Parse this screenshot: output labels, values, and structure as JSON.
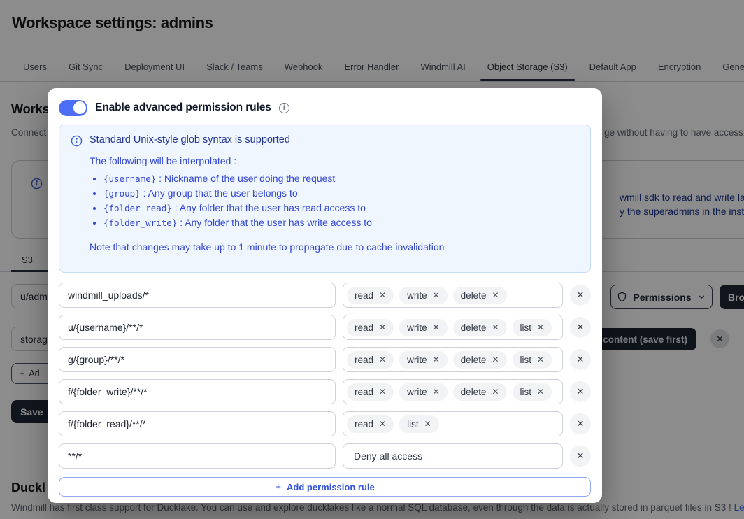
{
  "header": {
    "title": "Workspace settings: admins"
  },
  "tabs": {
    "items": [
      "Users",
      "Git Sync",
      "Deployment UI",
      "Slack / Teams",
      "Webhook",
      "Error Handler",
      "Windmill AI",
      "Object Storage (S3)",
      "Default App",
      "Encryption",
      "Gener"
    ],
    "active": "Object Storage (S3)"
  },
  "background": {
    "section_heading_fragment": "Works",
    "desc_left_fragment": "Connect",
    "desc_right_fragment": "ge without having to have access t",
    "info_line1_fragment": "wmill sdk to read and write la",
    "info_line2_fragment": "y the superadmins in the insta",
    "s3_tab_label": "S3",
    "bucket_input_fragment": "u/adm",
    "storage_input_fragment": "storag",
    "add_button_fragment": "Ad",
    "save_button_label": "Save",
    "permissions_button_label": "Permissions",
    "browse_button_fragment": "Brow",
    "content_badge_fragment": "content (save first)",
    "close_icon_glyph": "✕",
    "ducklake_heading_fragment": "Duckl",
    "ducklake_text": "Windmill has first class support for Ducklake. You can use and explore ducklakes like a normal SQL database, even through the data is actually stored in parquet files in S3 ! ",
    "learn_more_label": "Learn more"
  },
  "modal": {
    "toggle_label": "Enable advanced permission rules",
    "toggle_on": true,
    "info": {
      "title": "Standard Unix-style glob syntax is supported",
      "intro": "The following will be interpolated :",
      "bullets": [
        {
          "token": "{username}",
          "desc": "Nickname of the user doing the request"
        },
        {
          "token": "{group}",
          "desc": "Any group that the user belongs to"
        },
        {
          "token": "{folder_read}",
          "desc": "Any folder that the user has read access to"
        },
        {
          "token": "{folder_write}",
          "desc": "Any folder that the user has write access to"
        }
      ],
      "note": "Note that changes may take up to 1 minute to propagate due to cache invalidation"
    },
    "rules": [
      {
        "pattern": "windmill_uploads/*",
        "permissions": [
          "read",
          "write",
          "delete"
        ],
        "deny_label": null
      },
      {
        "pattern": "u/{username}/**/*",
        "permissions": [
          "read",
          "write",
          "delete",
          "list"
        ],
        "deny_label": null
      },
      {
        "pattern": "g/{group}/**/*",
        "permissions": [
          "read",
          "write",
          "delete",
          "list"
        ],
        "deny_label": null
      },
      {
        "pattern": "f/{folder_write}/**/*",
        "permissions": [
          "read",
          "write",
          "delete",
          "list"
        ],
        "deny_label": null
      },
      {
        "pattern": "f/{folder_read}/**/*",
        "permissions": [
          "read",
          "list"
        ],
        "deny_label": null
      },
      {
        "pattern": "**/*",
        "permissions": [],
        "deny_label": "Deny all access"
      }
    ],
    "remove_tag_glyph": "✕",
    "remove_rule_glyph": "✕",
    "add_rule_label": "Add permission rule"
  },
  "colors": {
    "accent_toggle_blue": "#4c6ef5",
    "info_panel_bg": "#eff6ff",
    "info_panel_border": "#c6dbf7",
    "info_heading_blue": "#23368f",
    "info_text_blue": "#3347d1",
    "dark_button": "#1f2937",
    "link_blue": "#3d74e8",
    "active_tab_underline": "#2a313c"
  }
}
